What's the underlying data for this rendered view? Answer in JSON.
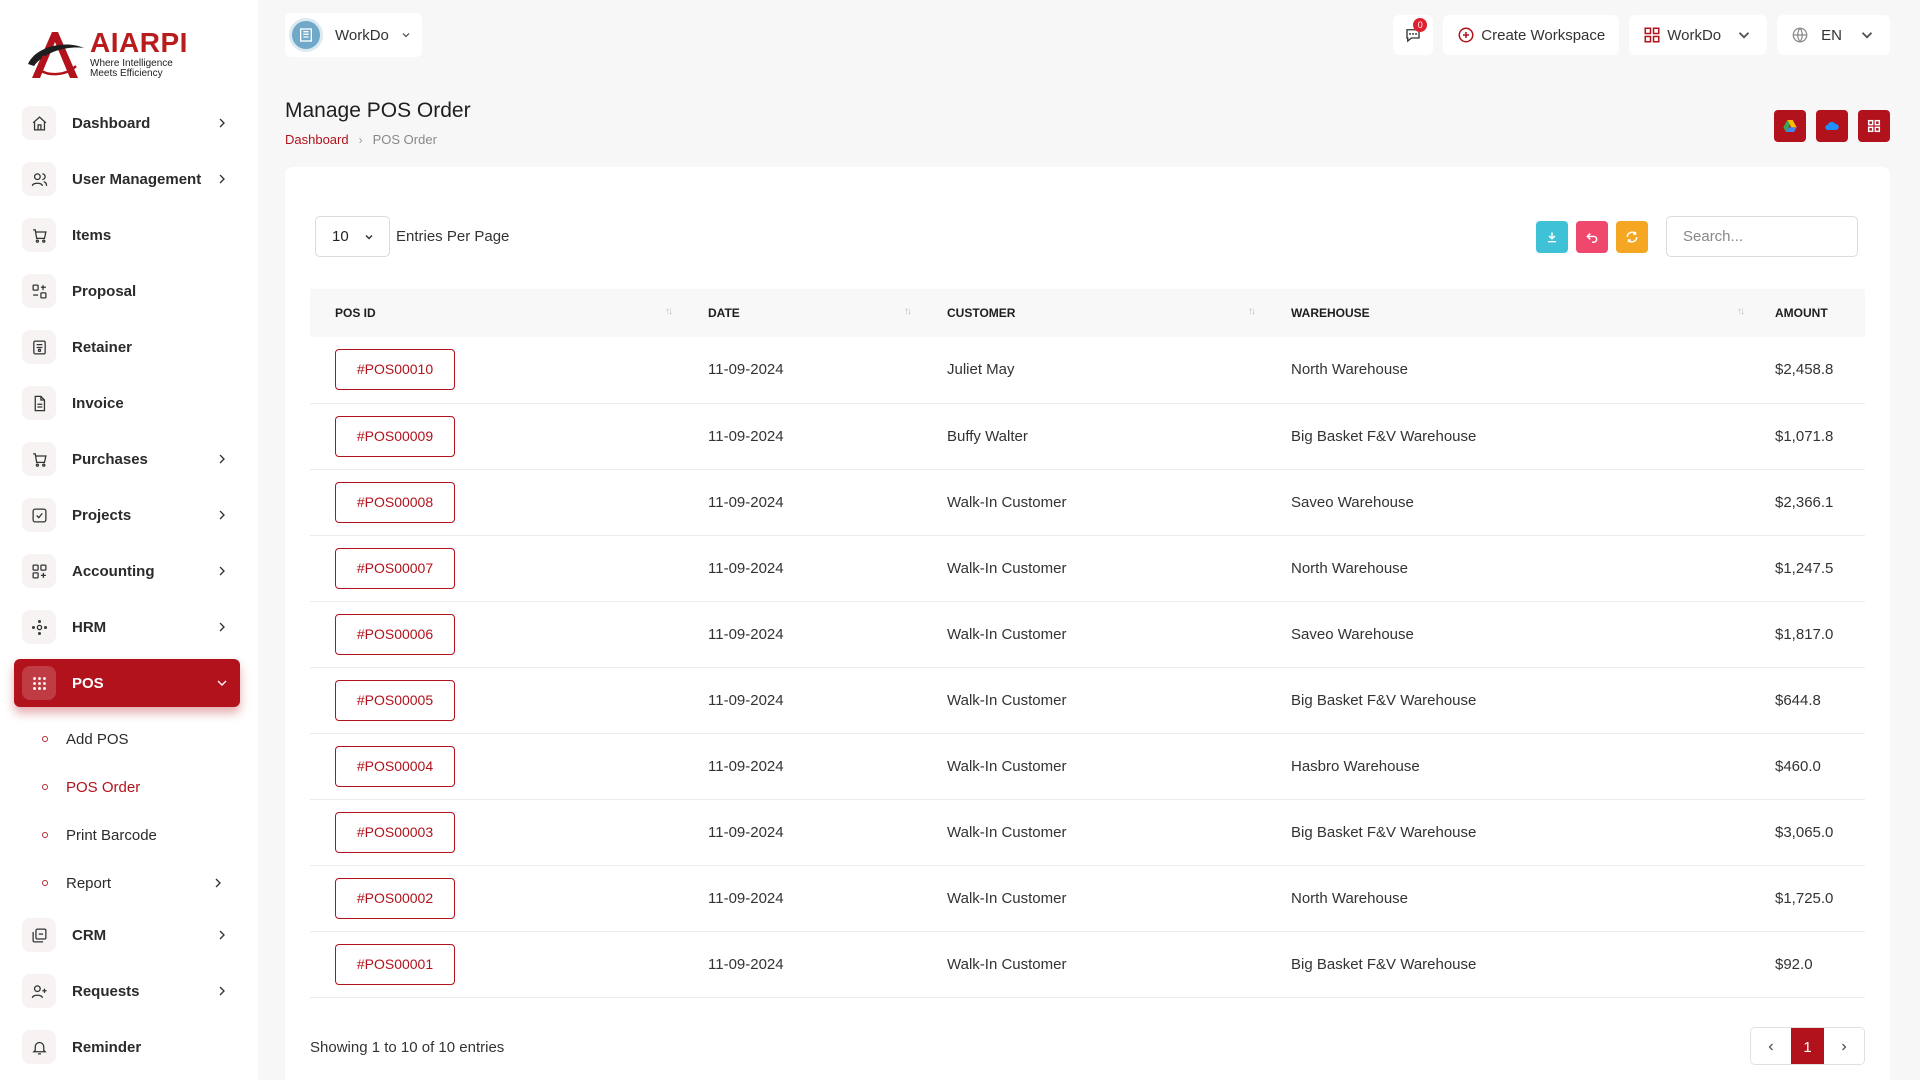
{
  "brand": {
    "name": "AIARPI",
    "tagline_1": "Where Intelligence",
    "tagline_2": "Meets Efficiency",
    "accent": "#b2121b"
  },
  "sidebar": {
    "items": [
      {
        "label": "Dashboard",
        "icon": "home-icon",
        "has_arrow": true
      },
      {
        "label": "User Management",
        "icon": "users-icon",
        "has_arrow": true
      },
      {
        "label": "Items",
        "icon": "cart-icon",
        "has_arrow": false
      },
      {
        "label": "Proposal",
        "icon": "proposal-icon",
        "has_arrow": false
      },
      {
        "label": "Retainer",
        "icon": "retainer-icon",
        "has_arrow": false
      },
      {
        "label": "Invoice",
        "icon": "invoice-icon",
        "has_arrow": false
      },
      {
        "label": "Purchases",
        "icon": "cart-icon",
        "has_arrow": true
      },
      {
        "label": "Projects",
        "icon": "check-square-icon",
        "has_arrow": true
      },
      {
        "label": "Accounting",
        "icon": "grid-plus-icon",
        "has_arrow": true
      },
      {
        "label": "HRM",
        "icon": "hrm-icon",
        "has_arrow": true
      },
      {
        "label": "POS",
        "icon": "dots-grid-icon",
        "has_arrow": true,
        "active": true
      }
    ],
    "pos_sub": [
      {
        "label": "Add POS"
      },
      {
        "label": "POS Order",
        "active": true
      },
      {
        "label": "Print Barcode"
      },
      {
        "label": "Report",
        "has_arrow": true
      }
    ],
    "items_after": [
      {
        "label": "CRM",
        "icon": "crm-icon",
        "has_arrow": true
      },
      {
        "label": "Requests",
        "icon": "user-plus-icon",
        "has_arrow": true
      },
      {
        "label": "Reminder",
        "icon": "bell-icon",
        "has_arrow": false
      }
    ]
  },
  "topbar": {
    "workspace": "WorkDo",
    "message_count": "0",
    "create_workspace": "Create Workspace",
    "workspace_menu": "WorkDo",
    "language": "EN"
  },
  "page": {
    "title": "Manage POS Order",
    "breadcrumb_home": "Dashboard",
    "breadcrumb_current": "POS Order"
  },
  "table": {
    "entries_value": "10",
    "entries_label": "Entries Per Page",
    "search_placeholder": "Search...",
    "columns": [
      "POS ID",
      "DATE",
      "CUSTOMER",
      "WAREHOUSE",
      "AMOUNT"
    ],
    "rows": [
      {
        "id": "#POS00010",
        "date": "11-09-2024",
        "customer": "Juliet May",
        "warehouse": "North Warehouse",
        "amount": "$2,458.8"
      },
      {
        "id": "#POS00009",
        "date": "11-09-2024",
        "customer": "Buffy Walter",
        "warehouse": "Big Basket F&V Warehouse",
        "amount": "$1,071.8"
      },
      {
        "id": "#POS00008",
        "date": "11-09-2024",
        "customer": "Walk-In Customer",
        "warehouse": "Saveo Warehouse",
        "amount": "$2,366.1"
      },
      {
        "id": "#POS00007",
        "date": "11-09-2024",
        "customer": "Walk-In Customer",
        "warehouse": "North Warehouse",
        "amount": "$1,247.5"
      },
      {
        "id": "#POS00006",
        "date": "11-09-2024",
        "customer": "Walk-In Customer",
        "warehouse": "Saveo Warehouse",
        "amount": "$1,817.0"
      },
      {
        "id": "#POS00005",
        "date": "11-09-2024",
        "customer": "Walk-In Customer",
        "warehouse": "Big Basket F&V Warehouse",
        "amount": "$644.8"
      },
      {
        "id": "#POS00004",
        "date": "11-09-2024",
        "customer": "Walk-In Customer",
        "warehouse": "Hasbro Warehouse",
        "amount": "$460.0"
      },
      {
        "id": "#POS00003",
        "date": "11-09-2024",
        "customer": "Walk-In Customer",
        "warehouse": "Big Basket F&V Warehouse",
        "amount": "$3,065.0"
      },
      {
        "id": "#POS00002",
        "date": "11-09-2024",
        "customer": "Walk-In Customer",
        "warehouse": "North Warehouse",
        "amount": "$1,725.0"
      },
      {
        "id": "#POS00001",
        "date": "11-09-2024",
        "customer": "Walk-In Customer",
        "warehouse": "Big Basket F&V Warehouse",
        "amount": "$92.0"
      }
    ],
    "showing": "Showing 1 to 10 of 10 entries",
    "current_page": "1"
  },
  "colors": {
    "accent": "#b2121b",
    "export": "#3fc1d6",
    "reset": "#f0476c",
    "reload": "#f5a623"
  }
}
